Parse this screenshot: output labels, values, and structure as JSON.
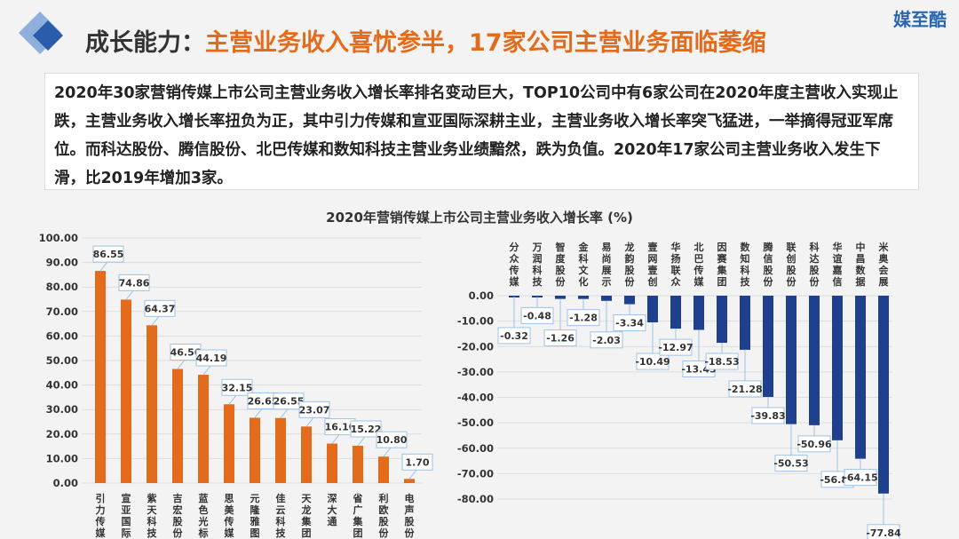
{
  "brand": "媒至酷",
  "header": {
    "title_prefix": "成长能力：",
    "title_highlight": "主营业务收入喜忧参半，17家公司主营业务面临萎缩"
  },
  "description": "2020年30家营销传媒上市公司主营业务收入增长率排名变动巨大，TOP10公司中有6家公司在2020年度主营收入实现止跌，主营业务收入增长率扭负为正，其中引力传媒和宣亚国际深耕主业，主营业务收入增长率突飞猛进，一举摘得冠亚军席位。而科达股份、腾信股份、北巴传媒和数知科技主营业务业绩黯然，跌为负值。2020年17家公司主营业务收入发生下滑，比2019年增加3家。",
  "chart_data": [
    {
      "type": "bar",
      "title": "2020年营销传媒上市公司主营业务收入增长率 (%)",
      "color": "#e36c1c",
      "categories": [
        "引力传媒",
        "宣亚国际",
        "紫天科技",
        "吉宏股份",
        "蓝色光标",
        "思美传媒",
        "元隆雅图",
        "佳云科技",
        "天龙集团",
        "深大通",
        "省广集团",
        "利欧股份",
        "电声股份"
      ],
      "values": [
        86.55,
        74.86,
        64.37,
        46.56,
        44.19,
        32.15,
        26.65,
        26.55,
        23.07,
        16.1,
        15.22,
        10.8,
        1.7
      ],
      "ylim": [
        0,
        100
      ],
      "yticks": [
        "100.00",
        "90.00",
        "80.00",
        "70.00",
        "60.00",
        "50.00",
        "40.00",
        "30.00",
        "20.00",
        "10.00",
        "0.00"
      ],
      "grid": true
    },
    {
      "type": "bar",
      "color": "#1f3f8f",
      "categories": [
        "分众传媒",
        "万润科技",
        "智度股份",
        "金科文化",
        "易尚展示",
        "龙韵股份",
        "壹网壹创",
        "华扬联众",
        "北巴传媒",
        "因赛集团",
        "数知科技",
        "腾信股份",
        "联创股份",
        "科达股份",
        "华谊嘉信",
        "中昌数据",
        "米奥会展"
      ],
      "values": [
        -0.32,
        -0.48,
        -1.26,
        -1.28,
        -2.03,
        -3.34,
        -10.49,
        -12.97,
        -13.45,
        -18.53,
        -21.28,
        -39.83,
        -50.53,
        -50.96,
        -56.89,
        -64.15,
        -77.84
      ],
      "ylim": [
        -80,
        0
      ],
      "yticks": [
        "0.00",
        "-10.00",
        "-20.00",
        "-30.00",
        "-40.00",
        "-50.00",
        "-60.00",
        "-70.00",
        "-80.00"
      ],
      "grid": true
    }
  ]
}
